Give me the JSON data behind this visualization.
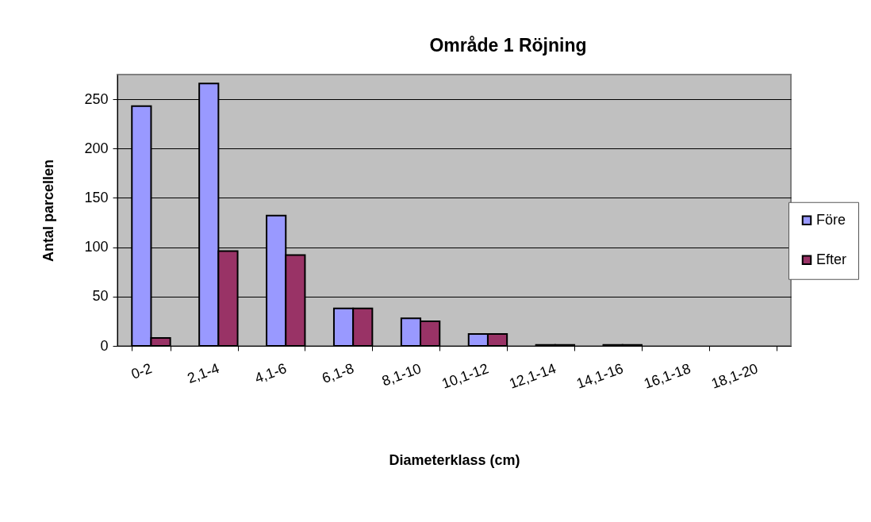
{
  "chart_data": {
    "type": "bar",
    "title": "Område 1 Röjning",
    "xlabel": "Diameterklass  (cm)",
    "ylabel": "Antal parcellen",
    "categories": [
      "0-2",
      "2,1-4",
      "4,1-6",
      "6,1-8",
      "8,1-10",
      "10,1-12",
      "12,1-14",
      "14,1-16",
      "16,1-18",
      "18,1-20"
    ],
    "series": [
      {
        "name": "Före",
        "color": "#9999ff",
        "values": [
          243,
          266,
          132,
          38,
          28,
          12,
          1,
          1,
          0,
          0
        ]
      },
      {
        "name": "Efter",
        "color": "#993366",
        "values": [
          8,
          96,
          92,
          38,
          25,
          12,
          1,
          1,
          0,
          0
        ]
      }
    ],
    "ylim": [
      0,
      275
    ],
    "yticks": [
      0,
      50,
      100,
      150,
      200,
      250
    ],
    "grid": "y",
    "legend": "right"
  }
}
